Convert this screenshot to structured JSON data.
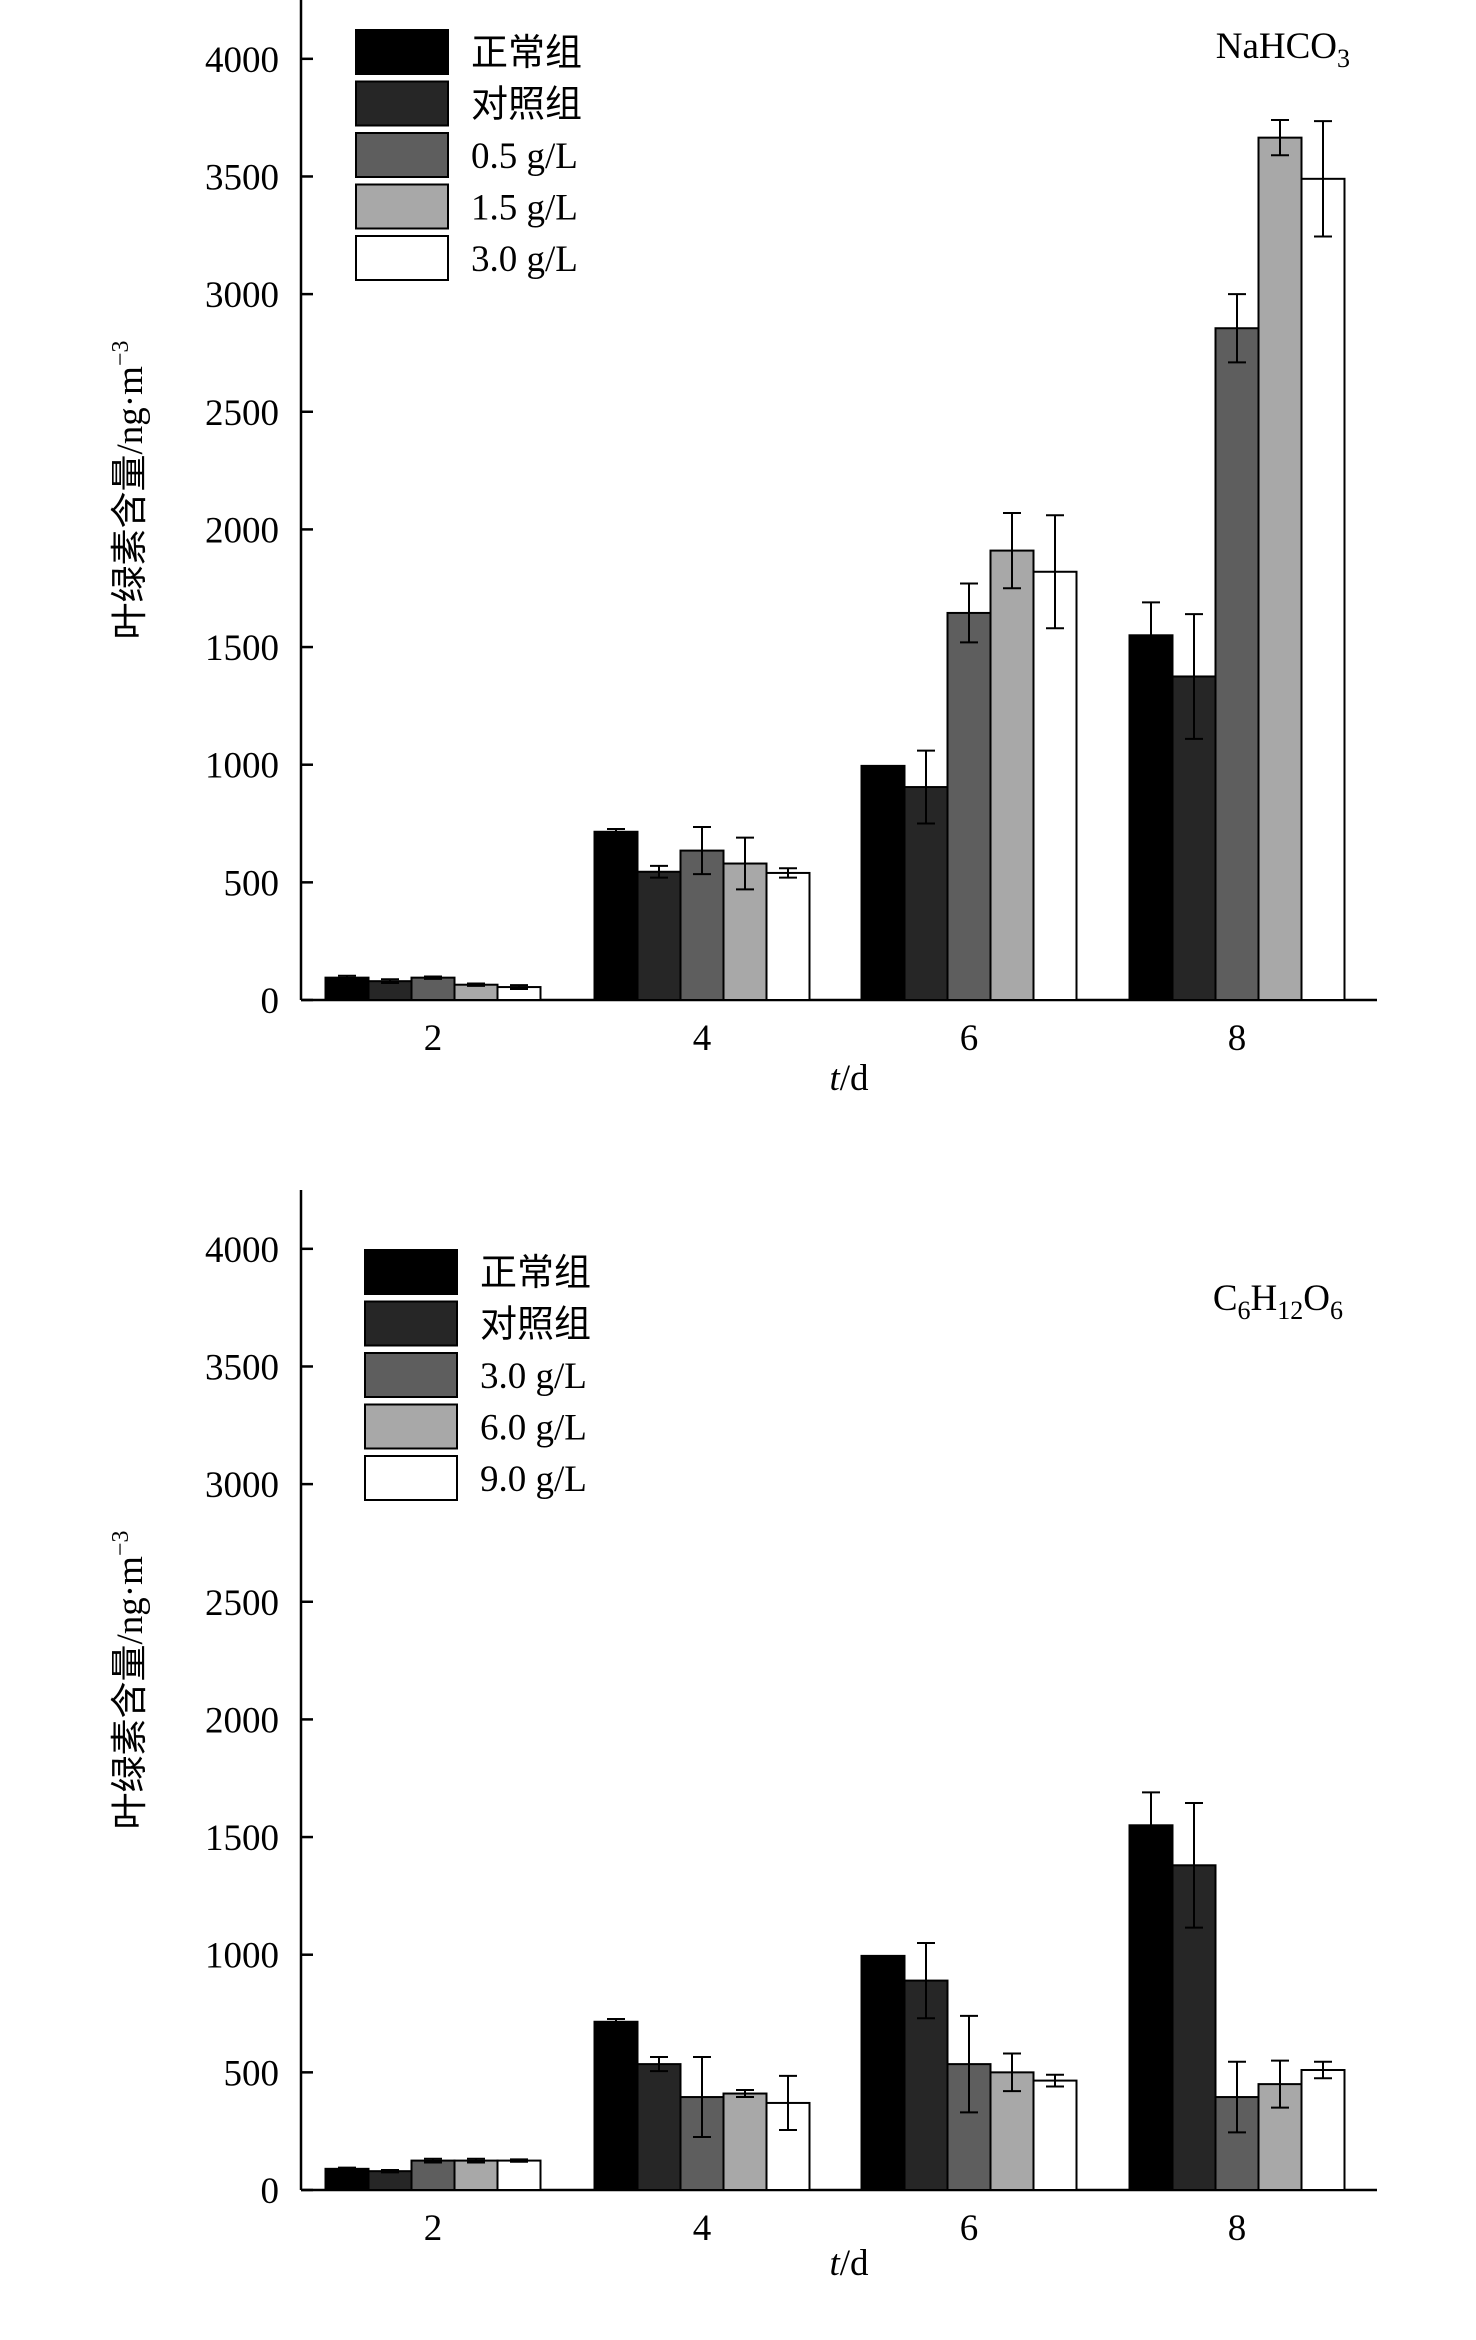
{
  "chart_data": [
    {
      "type": "bar",
      "title": "",
      "annotation": {
        "main": "NaHCO",
        "sub": "3"
      },
      "xlabel": {
        "italic": "t",
        "rest": "/d"
      },
      "ylabel": {
        "main": "叶绿素含量/ng·m",
        "sup": "−3"
      },
      "categories": [
        "2",
        "4",
        "6",
        "8"
      ],
      "ylim": [
        0,
        4250
      ],
      "yticks": [
        0,
        500,
        1000,
        1500,
        2000,
        2500,
        3000,
        3500,
        4000
      ],
      "grid": false,
      "legend_position": "top-left",
      "series": [
        {
          "name": "正常组",
          "color": "#000000",
          "values": [
            95,
            715,
            995,
            1550
          ],
          "errors": [
            8,
            12,
            0,
            140
          ]
        },
        {
          "name": "对照组",
          "color": "#262626",
          "values": [
            80,
            545,
            905,
            1375
          ],
          "errors": [
            8,
            25,
            155,
            265
          ]
        },
        {
          "name": "0.5 g/L",
          "color": "#5e5e5e",
          "values": [
            95,
            635,
            1645,
            2855
          ],
          "errors": [
            5,
            100,
            125,
            145
          ]
        },
        {
          "name": "1.5 g/L",
          "color": "#a8a8a8",
          "values": [
            65,
            580,
            1910,
            3665
          ],
          "errors": [
            5,
            110,
            160,
            75
          ]
        },
        {
          "name": "3.0 g/L",
          "color": "#ffffff",
          "values": [
            55,
            540,
            1820,
            3490
          ],
          "errors": [
            8,
            20,
            240,
            245
          ]
        }
      ]
    },
    {
      "type": "bar",
      "title": "",
      "annotation": {
        "parts": [
          [
            "C",
            "6"
          ],
          [
            "H",
            "12"
          ],
          [
            "O",
            "6"
          ]
        ]
      },
      "xlabel": {
        "italic": "t",
        "rest": "/d"
      },
      "ylabel": {
        "main": "叶绿素含量/ng·m",
        "sup": "−3"
      },
      "categories": [
        "2",
        "4",
        "6",
        "8"
      ],
      "ylim": [
        0,
        4250
      ],
      "yticks": [
        0,
        500,
        1000,
        1500,
        2000,
        2500,
        3000,
        3500,
        4000
      ],
      "grid": false,
      "legend_position": "top-left",
      "series": [
        {
          "name": "正常组",
          "color": "#000000",
          "values": [
            90,
            715,
            995,
            1550
          ],
          "errors": [
            5,
            12,
            0,
            140
          ]
        },
        {
          "name": "对照组",
          "color": "#262626",
          "values": [
            80,
            535,
            890,
            1380
          ],
          "errors": [
            5,
            30,
            160,
            265
          ]
        },
        {
          "name": "3.0 g/L",
          "color": "#5e5e5e",
          "values": [
            125,
            395,
            535,
            395
          ],
          "errors": [
            8,
            170,
            205,
            150
          ]
        },
        {
          "name": "6.0 g/L",
          "color": "#a8a8a8",
          "values": [
            125,
            410,
            500,
            450
          ],
          "errors": [
            8,
            15,
            80,
            100
          ]
        },
        {
          "name": "9.0 g/L",
          "color": "#ffffff",
          "values": [
            125,
            370,
            465,
            510
          ],
          "errors": [
            5,
            115,
            25,
            35
          ]
        }
      ]
    }
  ]
}
